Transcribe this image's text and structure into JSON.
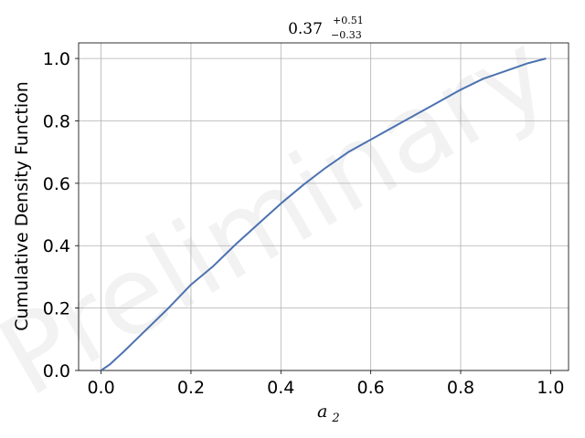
{
  "chart_data": {
    "type": "line",
    "title": {
      "value": "0.37",
      "upper": "+0.51",
      "lower": "−0.33"
    },
    "xlabel": {
      "base": "a",
      "subscript": "2"
    },
    "ylabel": "Cumulative Density Function",
    "xlim": [
      -0.05,
      1.04
    ],
    "ylim": [
      0.0,
      1.05
    ],
    "x_ticks": [
      0.0,
      0.2,
      0.4,
      0.6,
      0.8,
      1.0
    ],
    "x_tick_labels": [
      "0.0",
      "0.2",
      "0.4",
      "0.6",
      "0.8",
      "1.0"
    ],
    "y_ticks": [
      0.0,
      0.2,
      0.4,
      0.6,
      0.8,
      1.0
    ],
    "y_tick_labels": [
      "0.0",
      "0.2",
      "0.4",
      "0.6",
      "0.8",
      "1.0"
    ],
    "grid": true,
    "watermark": "Preliminary",
    "series": [
      {
        "color": "#4c72b0",
        "x": [
          0.0,
          0.02,
          0.05,
          0.1,
          0.15,
          0.2,
          0.25,
          0.3,
          0.35,
          0.4,
          0.45,
          0.5,
          0.55,
          0.6,
          0.65,
          0.7,
          0.75,
          0.8,
          0.85,
          0.9,
          0.95,
          0.99
        ],
        "y": [
          0.0,
          0.02,
          0.06,
          0.13,
          0.2,
          0.275,
          0.335,
          0.405,
          0.47,
          0.535,
          0.595,
          0.65,
          0.7,
          0.74,
          0.78,
          0.82,
          0.86,
          0.9,
          0.935,
          0.96,
          0.985,
          1.0
        ]
      }
    ]
  }
}
